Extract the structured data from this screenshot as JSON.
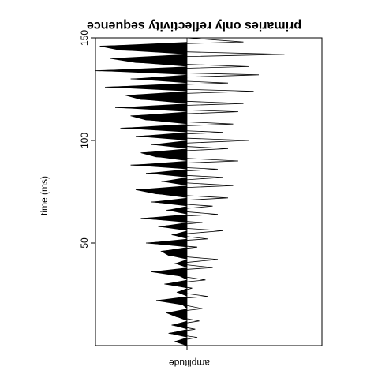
{
  "chart_data": {
    "type": "area",
    "title": "primaries only reflectivity sequence",
    "xlabel": "amplitude",
    "ylabel": "time (ms)",
    "mirrored_rendering": true,
    "ylim": [
      0,
      150
    ],
    "xlim": [
      -1.0,
      1.0
    ],
    "yticks": [
      50,
      100,
      150
    ],
    "ytick_labels": [
      "50",
      "100",
      "150"
    ],
    "fill_positive": true,
    "x": [
      0,
      2,
      4,
      6,
      8,
      10,
      12,
      14,
      16,
      18,
      20,
      22,
      24,
      26,
      28,
      30,
      32,
      34,
      36,
      38,
      40,
      42,
      44,
      46,
      48,
      50,
      52,
      54,
      56,
      58,
      60,
      62,
      64,
      66,
      68,
      70,
      72,
      74,
      76,
      78,
      80,
      82,
      84,
      86,
      88,
      90,
      92,
      94,
      96,
      98,
      100,
      102,
      104,
      106,
      108,
      110,
      112,
      114,
      116,
      118,
      120,
      122,
      124,
      126,
      128,
      130,
      132,
      134,
      136,
      138,
      140,
      142,
      144,
      146,
      148,
      150
    ],
    "amplitude": [
      0,
      0.12,
      -0.1,
      0.18,
      -0.08,
      0.15,
      -0.12,
      0.1,
      0.2,
      -0.15,
      0.05,
      0.3,
      -0.2,
      0.1,
      -0.05,
      0.22,
      -0.18,
      0.08,
      0.35,
      -0.25,
      0.12,
      -0.3,
      0.18,
      0.25,
      -0.1,
      0.4,
      -0.2,
      0.15,
      -0.35,
      0.28,
      -0.15,
      0.45,
      -0.3,
      0.2,
      -0.25,
      0.35,
      -0.4,
      0.3,
      0.5,
      -0.45,
      0.25,
      -0.35,
      0.4,
      -0.3,
      0.55,
      -0.5,
      0.3,
      0.45,
      -0.4,
      0.35,
      -0.6,
      0.5,
      -0.35,
      0.65,
      -0.45,
      0.4,
      0.55,
      -0.5,
      0.7,
      -0.55,
      0.45,
      0.6,
      -0.65,
      0.8,
      -0.4,
      0.55,
      -0.7,
      0.9,
      -0.6,
      0.5,
      0.75,
      -0.95,
      0.65,
      0.85,
      -0.55,
      0.0
    ]
  }
}
